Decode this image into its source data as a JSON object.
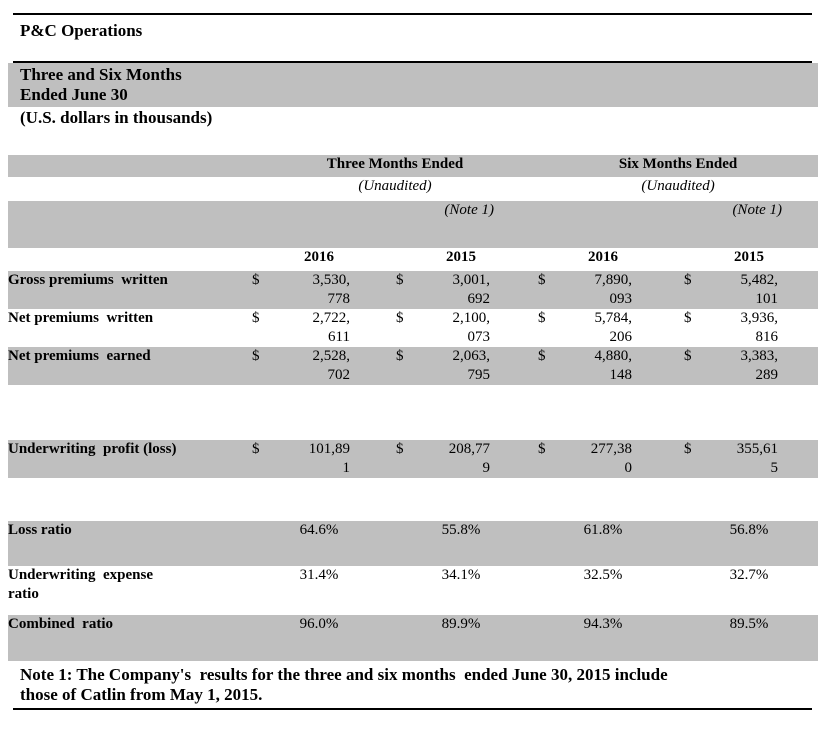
{
  "page": {
    "title": "P&C Operations",
    "subtitle_line1": "Three and Six Months",
    "subtitle_line2": "Ended June 30",
    "subtitle_line3": "(U.S. dollars in thousands)"
  },
  "table": {
    "currency_symbol": "$",
    "group_headers": [
      {
        "label": "Three Months Ended",
        "unaudited": "(Unaudited)",
        "note_ref": "(Note 1)"
      },
      {
        "label": "Six Months Ended",
        "unaudited": "(Unaudited)",
        "note_ref": "(Note 1)"
      }
    ],
    "year_headers": [
      "2016",
      "2015",
      "2016",
      "2015"
    ],
    "rows": [
      {
        "label": "Gross premiums  written",
        "type": "currency",
        "values": [
          "3,530,\n778",
          "3,001,\n692",
          "7,890,\n093",
          "5,482,\n101"
        ]
      },
      {
        "label": "Net premiums  written",
        "type": "currency",
        "values": [
          "2,722,\n611",
          "2,100,\n073",
          "5,784,\n206",
          "3,936,\n816"
        ]
      },
      {
        "label": "Net premiums  earned",
        "type": "currency",
        "values": [
          "2,528,\n702",
          "2,063,\n795",
          "4,880,\n148",
          "3,383,\n289"
        ]
      },
      {
        "label": "Underwriting  profit (loss)",
        "type": "currency",
        "values": [
          "101,89\n1",
          "208,77\n9",
          "277,38\n0",
          "355,61\n5"
        ]
      },
      {
        "label": "Loss ratio",
        "type": "percent",
        "values": [
          "64.6%",
          "55.8%",
          "61.8%",
          "56.8%"
        ]
      },
      {
        "label": "Underwriting  expense\nratio",
        "type": "percent",
        "values": [
          "31.4%",
          "34.1%",
          "32.5%",
          "32.7%"
        ]
      },
      {
        "label": "Combined  ratio",
        "type": "percent",
        "values": [
          "96.0%",
          "89.9%",
          "94.3%",
          "89.5%"
        ]
      }
    ],
    "footnote": "Note 1: The Company's  results for the three and six months  ended June 30, 2015 include\nthose of Catlin from May 1, 2015."
  },
  "colors": {
    "band_gray": "#BFBFBF",
    "rule_black": "#000000"
  }
}
